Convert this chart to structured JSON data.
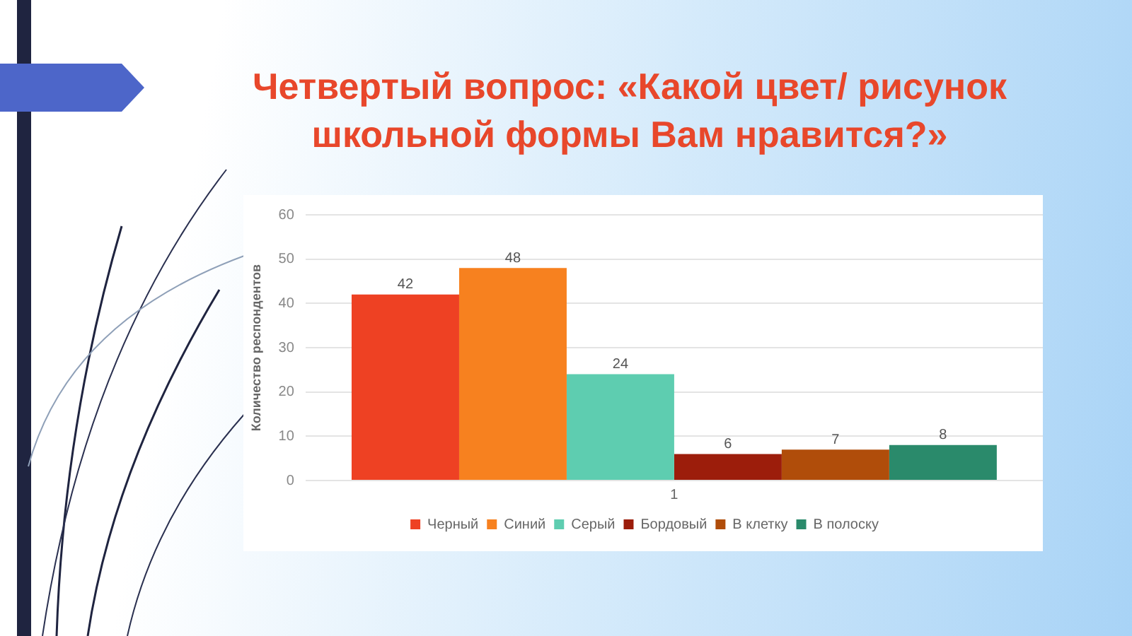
{
  "chart_data": {
    "type": "bar",
    "title": "Четвертый вопрос: «Какой цвет/ рисунок школьной формы Вам нравится?»",
    "ylabel": "Количество респондентов",
    "categories": [
      "1"
    ],
    "series": [
      {
        "name": "Черный",
        "color": "#ee4123",
        "values": [
          42
        ]
      },
      {
        "name": "Синий",
        "color": "#f7811f",
        "values": [
          48
        ]
      },
      {
        "name": "Серый",
        "color": "#5ecdb0",
        "values": [
          24
        ]
      },
      {
        "name": "Бордовый",
        "color": "#9c1d0b",
        "values": [
          6
        ]
      },
      {
        "name": "В клетку",
        "color": "#b04d0a",
        "values": [
          7
        ]
      },
      {
        "name": "В полоску",
        "color": "#2a8a6b",
        "values": [
          8
        ]
      }
    ],
    "ylim": [
      0,
      60
    ],
    "yticks": [
      0,
      10,
      20,
      30,
      40,
      50,
      60
    ],
    "grid": "y",
    "legend": "bottom",
    "data_labels": true
  }
}
